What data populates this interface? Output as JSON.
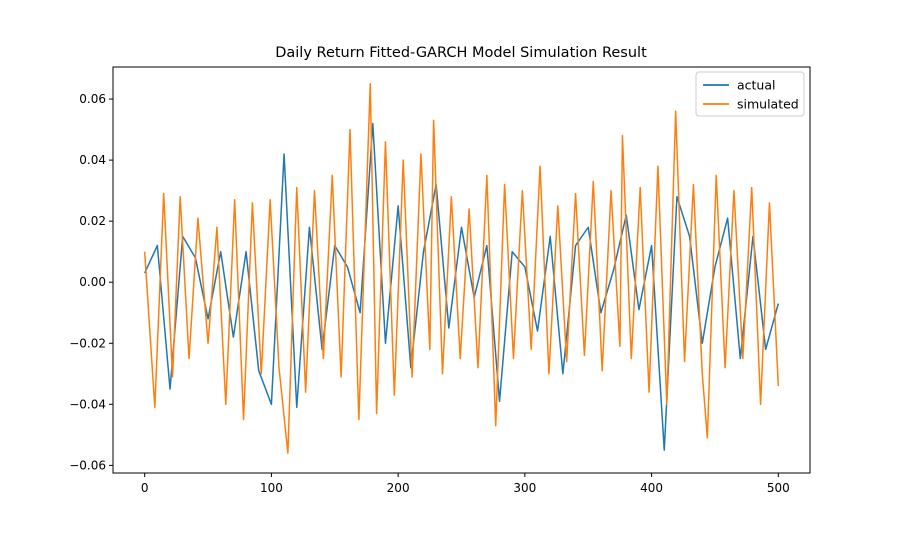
{
  "chart_data": {
    "type": "line",
    "title": "Daily Return Fitted-GARCH Model Simulation Result",
    "xlabel": "",
    "ylabel": "",
    "xlim": [
      -25,
      525
    ],
    "ylim": [
      -0.0625,
      0.0705
    ],
    "x_ticks": [
      0,
      100,
      200,
      300,
      400,
      500
    ],
    "x_tick_labels": [
      "0",
      "100",
      "200",
      "300",
      "400",
      "500"
    ],
    "y_ticks": [
      -0.06,
      -0.04,
      -0.02,
      0.0,
      0.02,
      0.04,
      0.06
    ],
    "y_tick_labels": [
      "−0.06",
      "−0.04",
      "−0.02",
      "0.00",
      "0.02",
      "0.04",
      "0.06"
    ],
    "grid": false,
    "legend": "top-right",
    "series": [
      {
        "name": "actual",
        "color": "#1f77b4",
        "x": [
          0,
          10,
          20,
          30,
          40,
          50,
          60,
          70,
          80,
          90,
          100,
          110,
          120,
          130,
          140,
          150,
          160,
          170,
          180,
          190,
          200,
          210,
          220,
          230,
          240,
          250,
          260,
          270,
          280,
          290,
          300,
          310,
          320,
          330,
          340,
          350,
          360,
          370,
          380,
          390,
          400,
          410,
          420,
          430,
          440,
          450,
          460,
          470,
          480,
          490,
          500
        ],
        "y": [
          0.003,
          0.012,
          -0.035,
          0.015,
          0.008,
          -0.012,
          0.01,
          -0.018,
          0.01,
          -0.029,
          -0.04,
          0.042,
          -0.041,
          0.018,
          -0.022,
          0.012,
          0.005,
          -0.01,
          0.052,
          -0.02,
          0.025,
          -0.028,
          0.01,
          0.032,
          -0.015,
          0.018,
          -0.005,
          0.012,
          -0.039,
          0.01,
          0.005,
          -0.016,
          0.015,
          -0.03,
          0.012,
          0.018,
          -0.01,
          0.004,
          0.022,
          -0.009,
          0.012,
          -0.055,
          0.028,
          0.015,
          -0.02,
          0.005,
          0.021,
          -0.025,
          0.015,
          -0.022,
          -0.007
        ]
      },
      {
        "name": "simulated",
        "color": "#ff7f0e",
        "x": [
          0,
          8,
          15,
          22,
          28,
          35,
          42,
          50,
          57,
          64,
          71,
          78,
          85,
          92,
          99,
          106,
          113,
          120,
          127,
          134,
          141,
          148,
          155,
          162,
          169,
          176,
          178,
          183,
          190,
          197,
          204,
          211,
          218,
          225,
          228,
          235,
          242,
          249,
          256,
          263,
          270,
          277,
          284,
          291,
          298,
          305,
          312,
          319,
          326,
          333,
          340,
          347,
          354,
          361,
          368,
          375,
          377,
          384,
          391,
          398,
          405,
          412,
          419,
          426,
          433,
          440,
          444,
          451,
          458,
          465,
          472,
          479,
          486,
          493,
          500
        ],
        "y": [
          0.01,
          -0.041,
          0.029,
          -0.031,
          0.028,
          -0.025,
          0.021,
          -0.02,
          0.018,
          -0.04,
          0.027,
          -0.045,
          0.026,
          -0.03,
          0.027,
          -0.028,
          -0.056,
          0.031,
          -0.036,
          0.03,
          -0.025,
          0.035,
          -0.031,
          0.05,
          -0.045,
          0.041,
          0.065,
          -0.043,
          0.046,
          -0.037,
          0.04,
          -0.031,
          0.042,
          -0.022,
          0.053,
          -0.03,
          0.028,
          -0.025,
          0.024,
          -0.028,
          0.035,
          -0.047,
          0.032,
          -0.025,
          0.03,
          -0.022,
          0.038,
          -0.03,
          0.025,
          -0.026,
          0.029,
          -0.024,
          0.033,
          -0.029,
          0.03,
          -0.021,
          0.048,
          -0.025,
          0.031,
          -0.036,
          0.038,
          -0.04,
          0.056,
          -0.026,
          0.032,
          -0.03,
          -0.051,
          0.035,
          -0.028,
          0.03,
          -0.025,
          0.031,
          -0.04,
          0.026,
          -0.034
        ]
      }
    ]
  }
}
